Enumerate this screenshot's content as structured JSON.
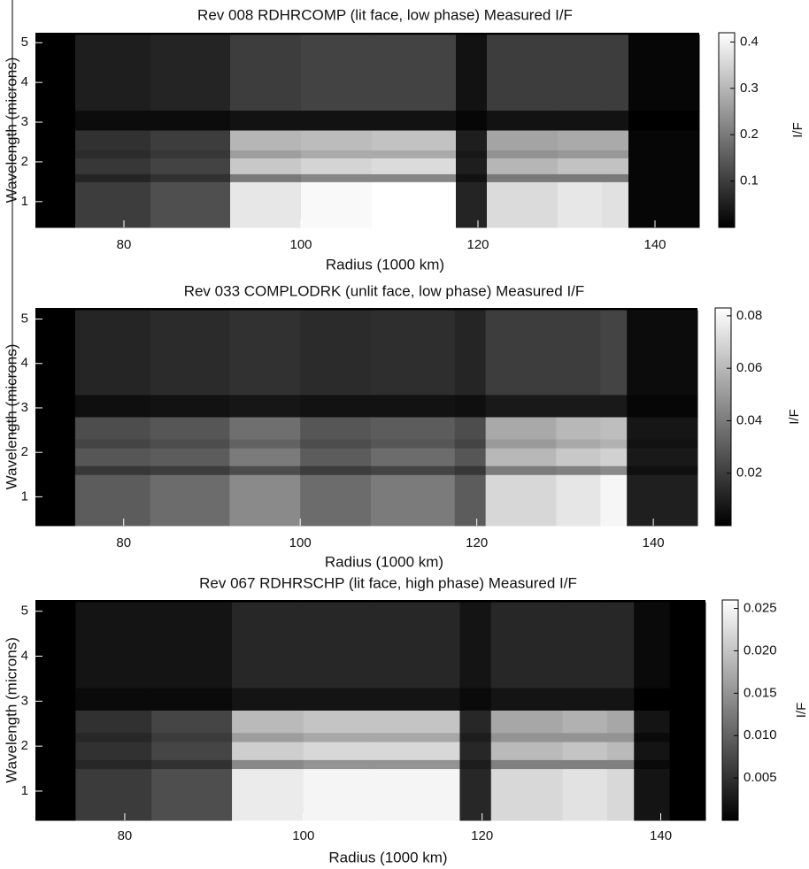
{
  "chart_data": [
    {
      "type": "heatmap",
      "title": "Rev 008 RDHRCOMP (lit face, low phase) Measured I/F",
      "xlabel": "Radius (1000 km)",
      "ylabel": "Wavelength (microns)",
      "colorbar_label": "I/F",
      "colormap": "gray",
      "xbins": [
        70,
        74.5,
        83,
        92,
        100,
        108,
        117.5,
        121,
        129,
        134,
        137,
        145
      ],
      "ybins": [
        0.35,
        1.5,
        1.7,
        2.1,
        2.3,
        2.8,
        3.3,
        5.2
      ],
      "values": [
        [
          0.0,
          0.1,
          0.13,
          0.38,
          0.41,
          0.42,
          0.06,
          0.36,
          0.38,
          0.37,
          0.01
        ],
        [
          0.0,
          0.06,
          0.08,
          0.2,
          0.22,
          0.22,
          0.03,
          0.2,
          0.2,
          0.2,
          0.01
        ],
        [
          0.0,
          0.09,
          0.11,
          0.33,
          0.35,
          0.36,
          0.05,
          0.3,
          0.32,
          0.32,
          0.01
        ],
        [
          0.0,
          0.07,
          0.09,
          0.26,
          0.28,
          0.28,
          0.04,
          0.24,
          0.25,
          0.25,
          0.01
        ],
        [
          0.0,
          0.08,
          0.1,
          0.3,
          0.31,
          0.32,
          0.05,
          0.27,
          0.28,
          0.28,
          0.01
        ],
        [
          0.0,
          0.02,
          0.02,
          0.03,
          0.03,
          0.03,
          0.01,
          0.03,
          0.03,
          0.03,
          0.0
        ],
        [
          0.0,
          0.05,
          0.06,
          0.1,
          0.11,
          0.11,
          0.03,
          0.1,
          0.1,
          0.1,
          0.01
        ]
      ],
      "xlim": [
        70,
        145
      ],
      "xticks": [
        80,
        100,
        120,
        140
      ],
      "ylim": [
        0.35,
        5.25
      ],
      "yticks": [
        1,
        2,
        3,
        4,
        5
      ],
      "zlim": [
        0,
        0.42
      ],
      "zticks": [
        0.1,
        0.2,
        0.3,
        0.4
      ]
    },
    {
      "type": "heatmap",
      "title": "Rev 033 COMPLODRK (unlit face, low phase) Measured I/F",
      "xlabel": "Radius (1000 km)",
      "ylabel": "Wavelength (microns)",
      "colorbar_label": "I/F",
      "colormap": "gray",
      "xbins": [
        70,
        74.5,
        83,
        92,
        100,
        108,
        117.5,
        121,
        129,
        134,
        137,
        145
      ],
      "ybins": [
        0.35,
        1.5,
        1.7,
        2.1,
        2.3,
        2.8,
        3.3,
        5.2
      ],
      "values": [
        [
          0.0,
          0.03,
          0.035,
          0.045,
          0.035,
          0.04,
          0.03,
          0.07,
          0.075,
          0.08,
          0.01
        ],
        [
          0.0,
          0.018,
          0.02,
          0.025,
          0.02,
          0.022,
          0.018,
          0.04,
          0.042,
          0.045,
          0.005
        ],
        [
          0.0,
          0.028,
          0.03,
          0.04,
          0.03,
          0.035,
          0.028,
          0.06,
          0.065,
          0.068,
          0.008
        ],
        [
          0.0,
          0.022,
          0.025,
          0.032,
          0.025,
          0.028,
          0.022,
          0.05,
          0.055,
          0.058,
          0.006
        ],
        [
          0.0,
          0.025,
          0.028,
          0.036,
          0.028,
          0.03,
          0.025,
          0.055,
          0.06,
          0.062,
          0.007
        ],
        [
          0.0,
          0.005,
          0.006,
          0.007,
          0.006,
          0.006,
          0.005,
          0.008,
          0.008,
          0.008,
          0.002
        ],
        [
          0.0,
          0.012,
          0.014,
          0.016,
          0.014,
          0.015,
          0.012,
          0.02,
          0.02,
          0.022,
          0.004
        ]
      ],
      "xlim": [
        70,
        145
      ],
      "xticks": [
        80,
        100,
        120,
        140
      ],
      "ylim": [
        0.35,
        5.25
      ],
      "yticks": [
        1,
        2,
        3,
        4,
        5
      ],
      "zlim": [
        0,
        0.083
      ],
      "zticks": [
        0.02,
        0.04,
        0.06,
        0.08
      ]
    },
    {
      "type": "heatmap",
      "title": "Rev 067 RDHRSCHP (lit face, high phase) Measured I/F",
      "xlabel": "Radius (1000 km)",
      "ylabel": "Wavelength (microns)",
      "colorbar_label": "I/F",
      "colormap": "gray",
      "xbins": [
        70,
        74.5,
        83,
        92,
        100,
        108,
        117.5,
        121,
        129,
        134,
        137,
        141,
        145
      ],
      "ybins": [
        0.35,
        1.5,
        1.7,
        2.1,
        2.3,
        2.8,
        3.3,
        5.2
      ],
      "values": [
        [
          0.0,
          0.006,
          0.008,
          0.024,
          0.025,
          0.025,
          0.004,
          0.022,
          0.023,
          0.022,
          0.002,
          0.0
        ],
        [
          0.0,
          0.004,
          0.005,
          0.014,
          0.015,
          0.015,
          0.003,
          0.013,
          0.013,
          0.013,
          0.001,
          0.0
        ],
        [
          0.0,
          0.005,
          0.007,
          0.021,
          0.022,
          0.022,
          0.004,
          0.019,
          0.02,
          0.019,
          0.002,
          0.0
        ],
        [
          0.0,
          0.004,
          0.006,
          0.016,
          0.017,
          0.017,
          0.003,
          0.015,
          0.015,
          0.015,
          0.001,
          0.0
        ],
        [
          0.0,
          0.005,
          0.007,
          0.019,
          0.02,
          0.02,
          0.004,
          0.017,
          0.018,
          0.017,
          0.002,
          0.0
        ],
        [
          0.0,
          0.001,
          0.001,
          0.002,
          0.002,
          0.002,
          0.001,
          0.002,
          0.002,
          0.002,
          0.0,
          0.0
        ],
        [
          0.0,
          0.002,
          0.002,
          0.004,
          0.004,
          0.004,
          0.002,
          0.004,
          0.004,
          0.004,
          0.001,
          0.0
        ]
      ],
      "xlim": [
        70,
        145
      ],
      "xticks": [
        80,
        100,
        120,
        140
      ],
      "ylim": [
        0.35,
        5.25
      ],
      "yticks": [
        1,
        2,
        3,
        4,
        5
      ],
      "zlim": [
        0,
        0.026
      ],
      "zticks": [
        0.005,
        {
          "value": 0.01,
          "label": "0.010"
        },
        0.015,
        {
          "value": 0.02,
          "label": "0.020"
        },
        0.025
      ]
    }
  ]
}
